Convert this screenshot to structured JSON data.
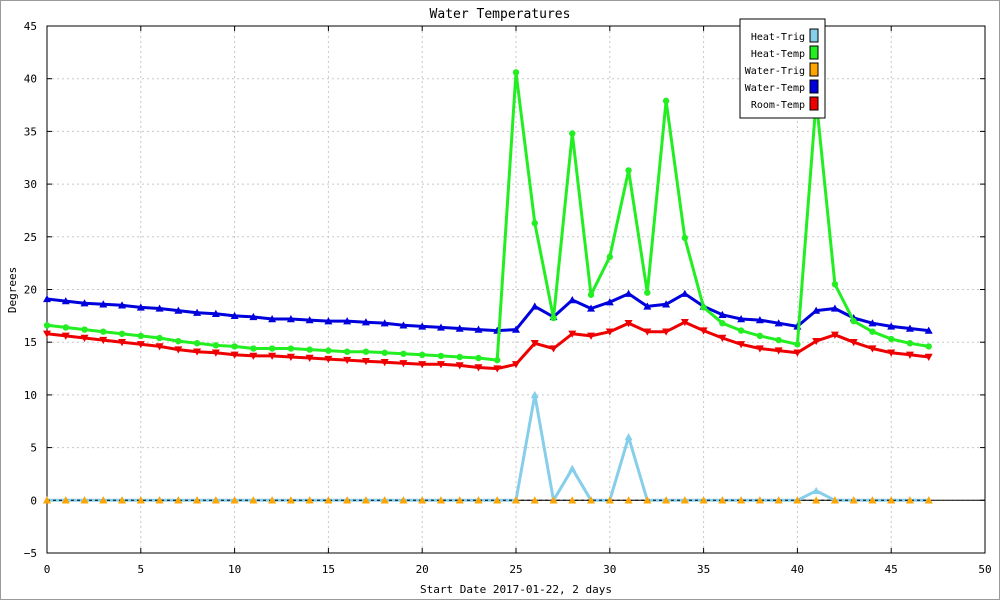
{
  "chart_data": {
    "type": "line",
    "title": "Water Temperatures",
    "xlabel": "Start Date 2017-01-22, 2 days",
    "ylabel": "Degrees",
    "xlim": [
      0,
      50
    ],
    "ylim": [
      -5,
      45
    ],
    "xticks": [
      0,
      5,
      10,
      15,
      20,
      25,
      30,
      35,
      40,
      45,
      50
    ],
    "yticks": [
      -5,
      0,
      5,
      10,
      15,
      20,
      25,
      30,
      35,
      40,
      45
    ],
    "grid": true,
    "legend_position": "top-right",
    "x": [
      0,
      1,
      2,
      3,
      4,
      5,
      6,
      7,
      8,
      9,
      10,
      11,
      12,
      13,
      14,
      15,
      16,
      17,
      18,
      19,
      20,
      21,
      22,
      23,
      24,
      25,
      26,
      27,
      28,
      29,
      30,
      31,
      32,
      33,
      34,
      35,
      36,
      37,
      38,
      39,
      40,
      41,
      42,
      43,
      44,
      45,
      46,
      47
    ],
    "series": [
      {
        "name": "Heat-Trig",
        "color": "#87ceeb",
        "marker": "triangle-up",
        "values": [
          0,
          0,
          0,
          0,
          0,
          0,
          0,
          0,
          0,
          0,
          0,
          0,
          0,
          0,
          0,
          0,
          0,
          0,
          0,
          0,
          0,
          0,
          0,
          0,
          0,
          0,
          10,
          0,
          3,
          0,
          0,
          6,
          0,
          0,
          0,
          0,
          0,
          0,
          0,
          0,
          0,
          0.9,
          0,
          0,
          0,
          0,
          0,
          0
        ]
      },
      {
        "name": "Heat-Temp",
        "color": "#22ee22",
        "marker": "circle",
        "values": [
          16.6,
          16.4,
          16.2,
          16.0,
          15.8,
          15.6,
          15.4,
          15.1,
          14.9,
          14.7,
          14.6,
          14.4,
          14.4,
          14.4,
          14.3,
          14.2,
          14.1,
          14.1,
          14.0,
          13.9,
          13.8,
          13.7,
          13.6,
          13.5,
          13.3,
          40.6,
          26.3,
          17.3,
          34.8,
          19.5,
          23.1,
          31.3,
          19.7,
          37.9,
          24.9,
          18.3,
          16.8,
          16.1,
          15.6,
          15.2,
          14.8,
          38.0,
          20.5,
          17.0,
          16.0,
          15.3,
          14.9,
          14.6
        ]
      },
      {
        "name": "Water-Trig",
        "color": "#ffa500",
        "marker": "triangle-up",
        "values": [
          0,
          0,
          0,
          0,
          0,
          0,
          0,
          0,
          0,
          0,
          0,
          0,
          0,
          0,
          0,
          0,
          0,
          0,
          0,
          0,
          0,
          0,
          0,
          0,
          0,
          0,
          0,
          0,
          0,
          0,
          0,
          0,
          0,
          0,
          0,
          0,
          0,
          0,
          0,
          0,
          0,
          0,
          0,
          0,
          0,
          0,
          0,
          0
        ]
      },
      {
        "name": "Water-Temp",
        "color": "#0000dd",
        "marker": "triangle-up",
        "values": [
          19.1,
          18.9,
          18.7,
          18.6,
          18.5,
          18.3,
          18.2,
          18.0,
          17.8,
          17.7,
          17.5,
          17.4,
          17.2,
          17.2,
          17.1,
          17.0,
          17.0,
          16.9,
          16.8,
          16.6,
          16.5,
          16.4,
          16.3,
          16.2,
          16.1,
          16.2,
          18.4,
          17.4,
          19.0,
          18.2,
          18.8,
          19.6,
          18.4,
          18.6,
          19.6,
          18.4,
          17.6,
          17.2,
          17.1,
          16.8,
          16.5,
          18.0,
          18.2,
          17.3,
          16.8,
          16.5,
          16.3,
          16.1
        ]
      },
      {
        "name": "Room-Temp",
        "color": "#ee0000",
        "marker": "triangle-down",
        "values": [
          15.8,
          15.6,
          15.4,
          15.2,
          15.0,
          14.8,
          14.6,
          14.3,
          14.1,
          14.0,
          13.8,
          13.7,
          13.7,
          13.6,
          13.5,
          13.4,
          13.3,
          13.2,
          13.1,
          13.0,
          12.9,
          12.9,
          12.8,
          12.6,
          12.5,
          12.9,
          14.9,
          14.4,
          15.8,
          15.6,
          16.0,
          16.8,
          16.0,
          16.0,
          16.9,
          16.1,
          15.4,
          14.8,
          14.4,
          14.2,
          14.0,
          15.1,
          15.7,
          15.0,
          14.4,
          14.0,
          13.8,
          13.6
        ]
      }
    ]
  }
}
